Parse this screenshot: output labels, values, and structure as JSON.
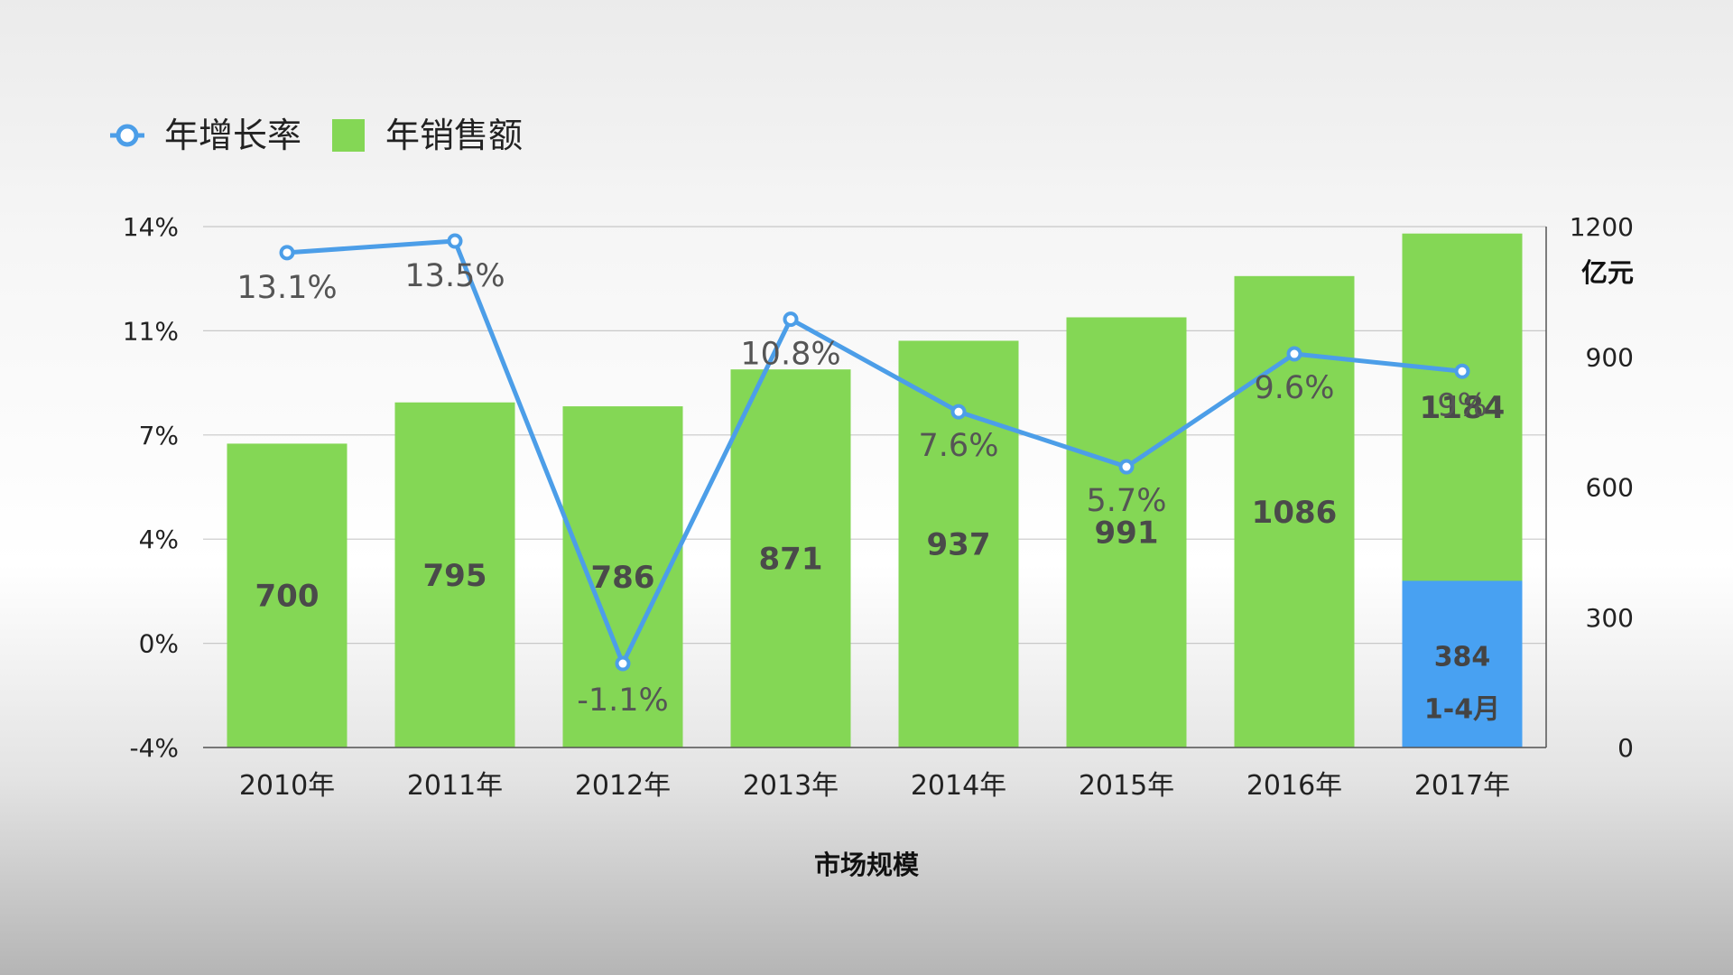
{
  "chart_data": {
    "type": "bar",
    "categories": [
      "2010年",
      "2011年",
      "2012年",
      "2013年",
      "2014年",
      "2015年",
      "2016年",
      "2017年"
    ],
    "series": [
      {
        "name": "年销售额",
        "kind": "bar",
        "axis": "right",
        "values": [
          700,
          795,
          786,
          871,
          937,
          991,
          1086,
          1184
        ],
        "color": "#84d755"
      },
      {
        "name": "年增长率",
        "kind": "line",
        "axis": "left",
        "values": [
          13.1,
          13.5,
          -1.1,
          10.8,
          7.6,
          5.7,
          9.6,
          9
        ],
        "labels": [
          "13.1%",
          "13.5%",
          "-1.1%",
          "10.8%",
          "7.6%",
          "5.7%",
          "9.6%",
          "9%"
        ],
        "color": "#4c9ee8"
      }
    ],
    "partial_segment": {
      "category": "2017年",
      "value": 384,
      "label": "1-4月",
      "color": "#48a1f2"
    },
    "left_axis": {
      "ticks": [
        "-4%",
        "0%",
        "4%",
        "7%",
        "11%",
        "14%"
      ],
      "range": [
        -4,
        14
      ]
    },
    "right_axis": {
      "unit": "亿元",
      "ticks": [
        "0",
        "300",
        "600",
        "900",
        "1200"
      ],
      "range": [
        0,
        1200
      ]
    },
    "xlabel": "市场规模",
    "legend": {
      "position": "top-left",
      "entries": [
        "年增长率",
        "年销售额"
      ]
    },
    "grid": true
  }
}
